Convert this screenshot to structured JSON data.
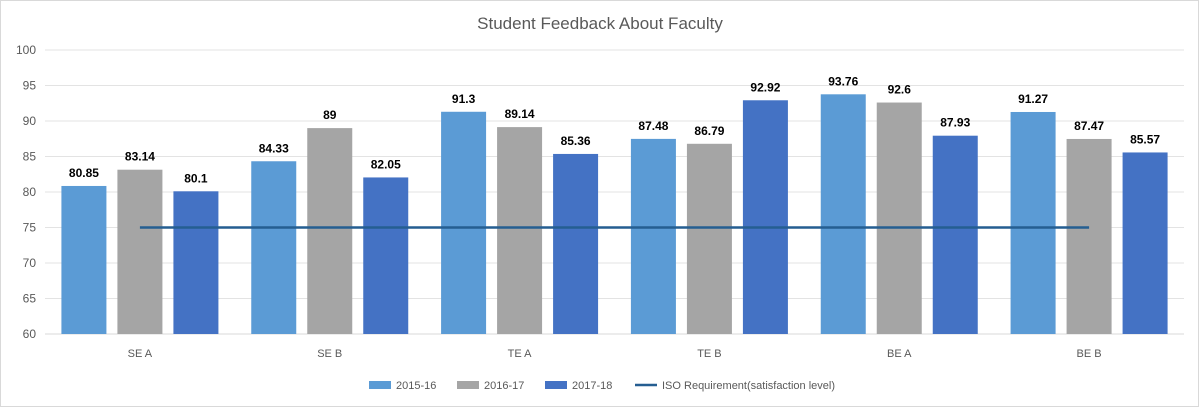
{
  "chart_data": {
    "type": "bar",
    "title": "Student Feedback About Faculty",
    "categories": [
      "SE A",
      "SE B",
      "TE A",
      "TE B",
      "BE A",
      "BE B"
    ],
    "series": [
      {
        "name": "2015-16",
        "color": "#5b9bd5",
        "values": [
          80.85,
          84.33,
          91.3,
          87.48,
          93.76,
          91.27
        ]
      },
      {
        "name": "2016-17",
        "color": "#a5a5a5",
        "values": [
          83.14,
          89,
          89.14,
          86.79,
          92.6,
          87.47
        ]
      },
      {
        "name": "2017-18",
        "color": "#4472c4",
        "values": [
          80.1,
          82.05,
          85.36,
          92.92,
          87.93,
          85.57
        ]
      }
    ],
    "line": {
      "name": "ISO Requirement(satisfaction level)",
      "color": "#255e91",
      "value": 75
    },
    "ylim": [
      60,
      100
    ],
    "yticks": [
      60,
      65,
      70,
      75,
      80,
      85,
      90,
      95,
      100
    ],
    "grid": true,
    "legend": "bottom"
  }
}
